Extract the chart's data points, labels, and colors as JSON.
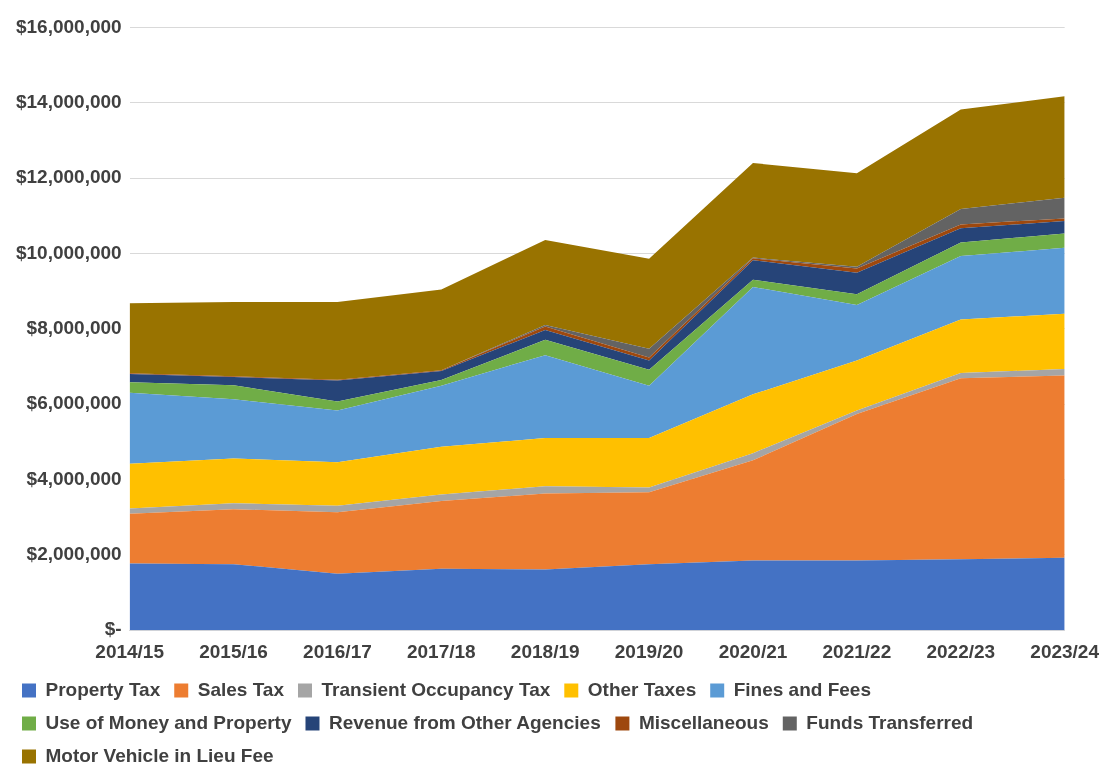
{
  "chart_data": {
    "type": "area",
    "stacked": true,
    "categories": [
      "2014/15",
      "2015/16",
      "2016/17",
      "2017/18",
      "2018/19",
      "2019/20",
      "2020/21",
      "2021/22",
      "2022/23",
      "2023/24"
    ],
    "series": [
      {
        "name": "Property Tax",
        "color": "#4472c4",
        "values": [
          1770000,
          1750000,
          1500000,
          1630000,
          1610000,
          1750000,
          1850000,
          1850000,
          1880000,
          1920000
        ]
      },
      {
        "name": "Sales Tax",
        "color": "#ed7d31",
        "values": [
          1320000,
          1460000,
          1630000,
          1800000,
          2020000,
          1910000,
          2660000,
          3890000,
          4810000,
          4840000
        ]
      },
      {
        "name": "Transient Occupancy Tax",
        "color": "#a5a5a5",
        "values": [
          140000,
          160000,
          170000,
          170000,
          190000,
          130000,
          190000,
          90000,
          140000,
          170000
        ]
      },
      {
        "name": "Other Taxes",
        "color": "#ffc000",
        "values": [
          1190000,
          1190000,
          1160000,
          1270000,
          1280000,
          1310000,
          1560000,
          1330000,
          1420000,
          1470000
        ]
      },
      {
        "name": "Fines and Fees",
        "color": "#5b9bd5",
        "values": [
          1880000,
          1570000,
          1370000,
          1620000,
          2200000,
          1390000,
          2850000,
          1470000,
          1680000,
          1750000
        ]
      },
      {
        "name": "Use of Money and Property",
        "color": "#70ad47",
        "values": [
          280000,
          370000,
          240000,
          150000,
          410000,
          420000,
          190000,
          290000,
          360000,
          380000
        ]
      },
      {
        "name": "Revenue from Other Agencies",
        "color": "#264478",
        "values": [
          220000,
          220000,
          560000,
          240000,
          260000,
          250000,
          520000,
          570000,
          380000,
          330000
        ]
      },
      {
        "name": "Miscellaneous",
        "color": "#9e480e",
        "values": [
          20000,
          20000,
          20000,
          20000,
          90000,
          80000,
          50000,
          110000,
          100000,
          70000
        ]
      },
      {
        "name": "Funds Transferred",
        "color": "#636363",
        "values": [
          0,
          0,
          0,
          0,
          40000,
          230000,
          20000,
          50000,
          410000,
          550000
        ]
      },
      {
        "name": "Motor Vehicle in Lieu Fee",
        "color": "#997300",
        "values": [
          1860000,
          1970000,
          2060000,
          2140000,
          2260000,
          2390000,
          2510000,
          2480000,
          2640000,
          2690000
        ]
      }
    ],
    "ylim": [
      0,
      16000000
    ],
    "yticks": [
      {
        "value": 0,
        "label": "$-"
      },
      {
        "value": 2000000,
        "label": "$2,000,000"
      },
      {
        "value": 4000000,
        "label": "$4,000,000"
      },
      {
        "value": 6000000,
        "label": "$6,000,000"
      },
      {
        "value": 8000000,
        "label": "$8,000,000"
      },
      {
        "value": 10000000,
        "label": "$10,000,000"
      },
      {
        "value": 12000000,
        "label": "$12,000,000"
      },
      {
        "value": 14000000,
        "label": "$14,000,000"
      },
      {
        "value": 16000000,
        "label": "$16,000,000"
      }
    ],
    "grid": "y",
    "legend": "bottom"
  }
}
